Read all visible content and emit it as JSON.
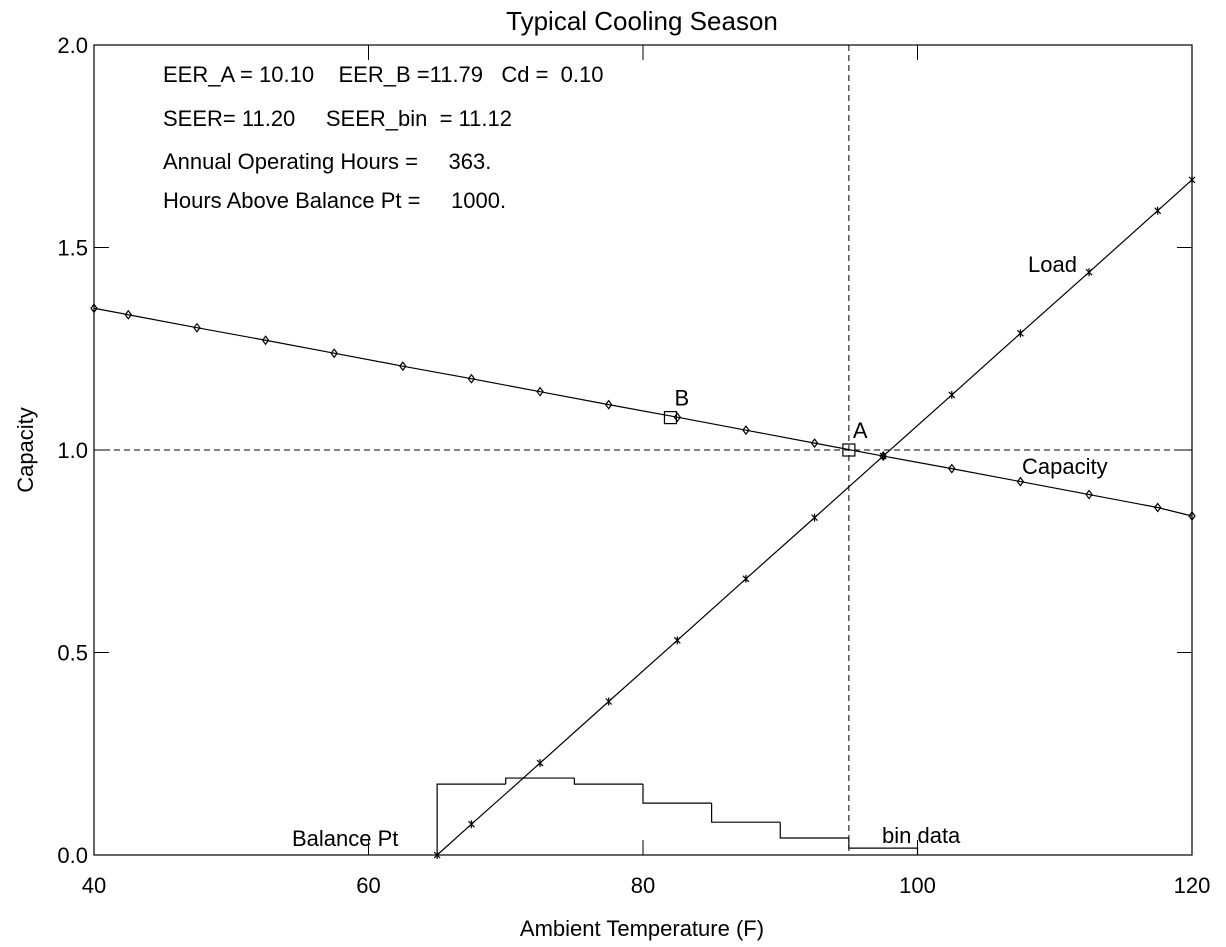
{
  "chart_data": {
    "type": "line",
    "title": "Typical Cooling Season",
    "xlabel": "Ambient Temperature (F)",
    "ylabel": "Capacity",
    "xlim": [
      40,
      120
    ],
    "ylim": [
      0,
      2
    ],
    "xticks": [
      40,
      60,
      80,
      100,
      120
    ],
    "yticks": [
      {
        "value": 0,
        "label": "0.0"
      },
      {
        "value": 0.5,
        "label": "0.5"
      },
      {
        "value": 1,
        "label": "1.0"
      },
      {
        "value": 1.5,
        "label": "1.5"
      },
      {
        "value": 2,
        "label": "2.0"
      }
    ],
    "series": [
      {
        "name": "Capacity",
        "color": "#000000",
        "marker": "diamond",
        "x": [
          40,
          42.5,
          47.5,
          52.5,
          57.5,
          62.5,
          67.5,
          72.5,
          77.5,
          82.5,
          87.5,
          92.5,
          97.5,
          102.5,
          107.5,
          112.5,
          117.5,
          120
        ],
        "values": [
          1.35,
          1.334,
          1.302,
          1.271,
          1.239,
          1.207,
          1.176,
          1.144,
          1.112,
          1.081,
          1.049,
          1.017,
          0.985,
          0.954,
          0.922,
          0.89,
          0.858,
          0.837
        ]
      },
      {
        "name": "Load",
        "color": "#000000",
        "marker": "asterisk",
        "x": [
          65,
          67.5,
          72.5,
          77.5,
          82.5,
          87.5,
          92.5,
          97.5,
          102.5,
          107.5,
          112.5,
          117.5,
          120
        ],
        "values": [
          0,
          0.076,
          0.227,
          0.379,
          0.53,
          0.682,
          0.833,
          0.985,
          1.136,
          1.288,
          1.439,
          1.591,
          1.667
        ]
      }
    ],
    "bin_data": {
      "name": "bin data",
      "bins": [
        65,
        70,
        75,
        80,
        85,
        90,
        95,
        100
      ],
      "values": [
        0.175,
        0.19,
        0.175,
        0.128,
        0.081,
        0.042,
        0.017
      ]
    },
    "points": [
      {
        "label": "A",
        "x": 95,
        "y": 1.0
      },
      {
        "label": "B",
        "x": 82,
        "y": 1.08
      }
    ],
    "ref_x": 95,
    "ref_y": 1.0,
    "annotations": [
      "Balance Pt",
      "EER_A = 10.10    EER_B =11.79   Cd =  0.10",
      "SEER= 11.20     SEER_bin  = 11.12",
      "Annual Operating Hours =     363.",
      "Hours Above Balance Pt =     1000."
    ]
  }
}
